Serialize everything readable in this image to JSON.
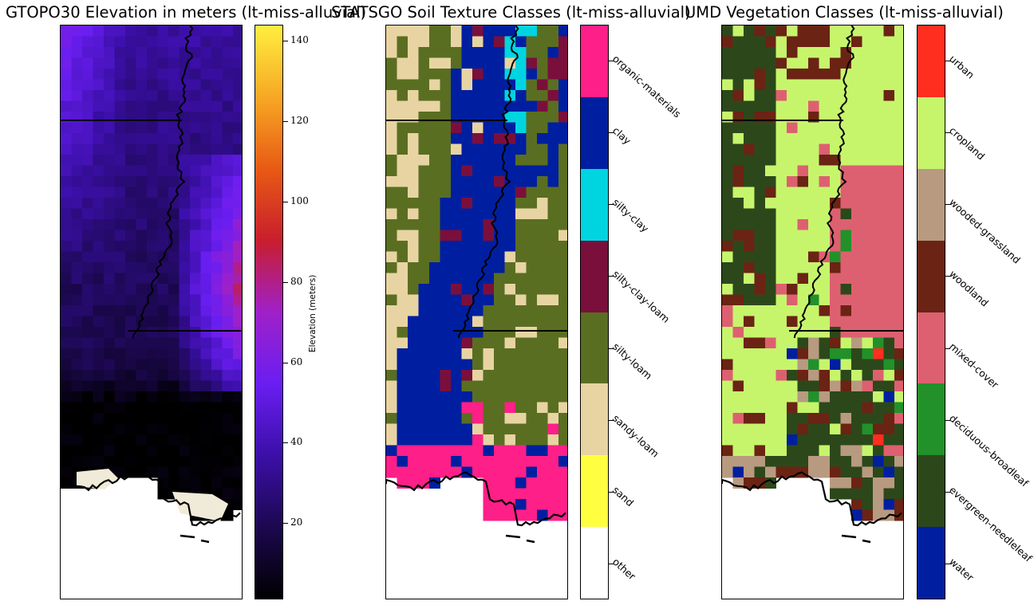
{
  "chart_data": [
    {
      "type": "heatmap",
      "title": "GTOPO30 Elevation in meters (lt-miss-alluvial)",
      "colorbar": {
        "label": "Elevation (meters)",
        "range": [
          1,
          144
        ],
        "ticks": [
          20,
          40,
          60,
          80,
          100,
          120,
          140
        ],
        "colormap": "gnuplot2-like: black → indigo → purple → red → orange → yellow"
      },
      "grid": {
        "cols": 17,
        "rows": 26
      },
      "color_stops": [
        "#000000",
        "#1c0850",
        "#3b0fa8",
        "#6a1ef2",
        "#a020c8",
        "#c81e2d",
        "#e85a14",
        "#f7a824",
        "#ffee40"
      ]
    },
    {
      "type": "heatmap",
      "title": "STATSGO Soil Texture Classes (lt-miss-alluvial)",
      "classes": [
        {
          "name": "other",
          "color": "#ffffff"
        },
        {
          "name": "sand",
          "color": "#ffff40"
        },
        {
          "name": "sandy-loam",
          "color": "#e8d4a2"
        },
        {
          "name": "silty-loam",
          "color": "#5a6e21"
        },
        {
          "name": "silty-clay-loam",
          "color": "#7b0f3c"
        },
        {
          "name": "silty-clay",
          "color": "#00d4e0"
        },
        {
          "name": "clay",
          "color": "#001fa0"
        },
        {
          "name": "organic-materials",
          "color": "#ff1f88"
        }
      ],
      "grid": {
        "cols": 17,
        "rows": 26
      }
    },
    {
      "type": "heatmap",
      "title": "UMD Vegetation Classes (lt-miss-alluvial)",
      "classes": [
        {
          "name": "water",
          "color": "#001fa0"
        },
        {
          "name": "evergreen-needleleaf",
          "color": "#2c481a"
        },
        {
          "name": "deciduous-broadleaf",
          "color": "#229129"
        },
        {
          "name": "mixed-cover",
          "color": "#dd6070"
        },
        {
          "name": "woodland",
          "color": "#6b2314"
        },
        {
          "name": "wooded-grassland",
          "color": "#b89a80"
        },
        {
          "name": "cropland",
          "color": "#c6f56c"
        },
        {
          "name": "urban",
          "color": "#ff2e1f"
        }
      ],
      "grid": {
        "cols": 17,
        "rows": 26
      }
    }
  ]
}
